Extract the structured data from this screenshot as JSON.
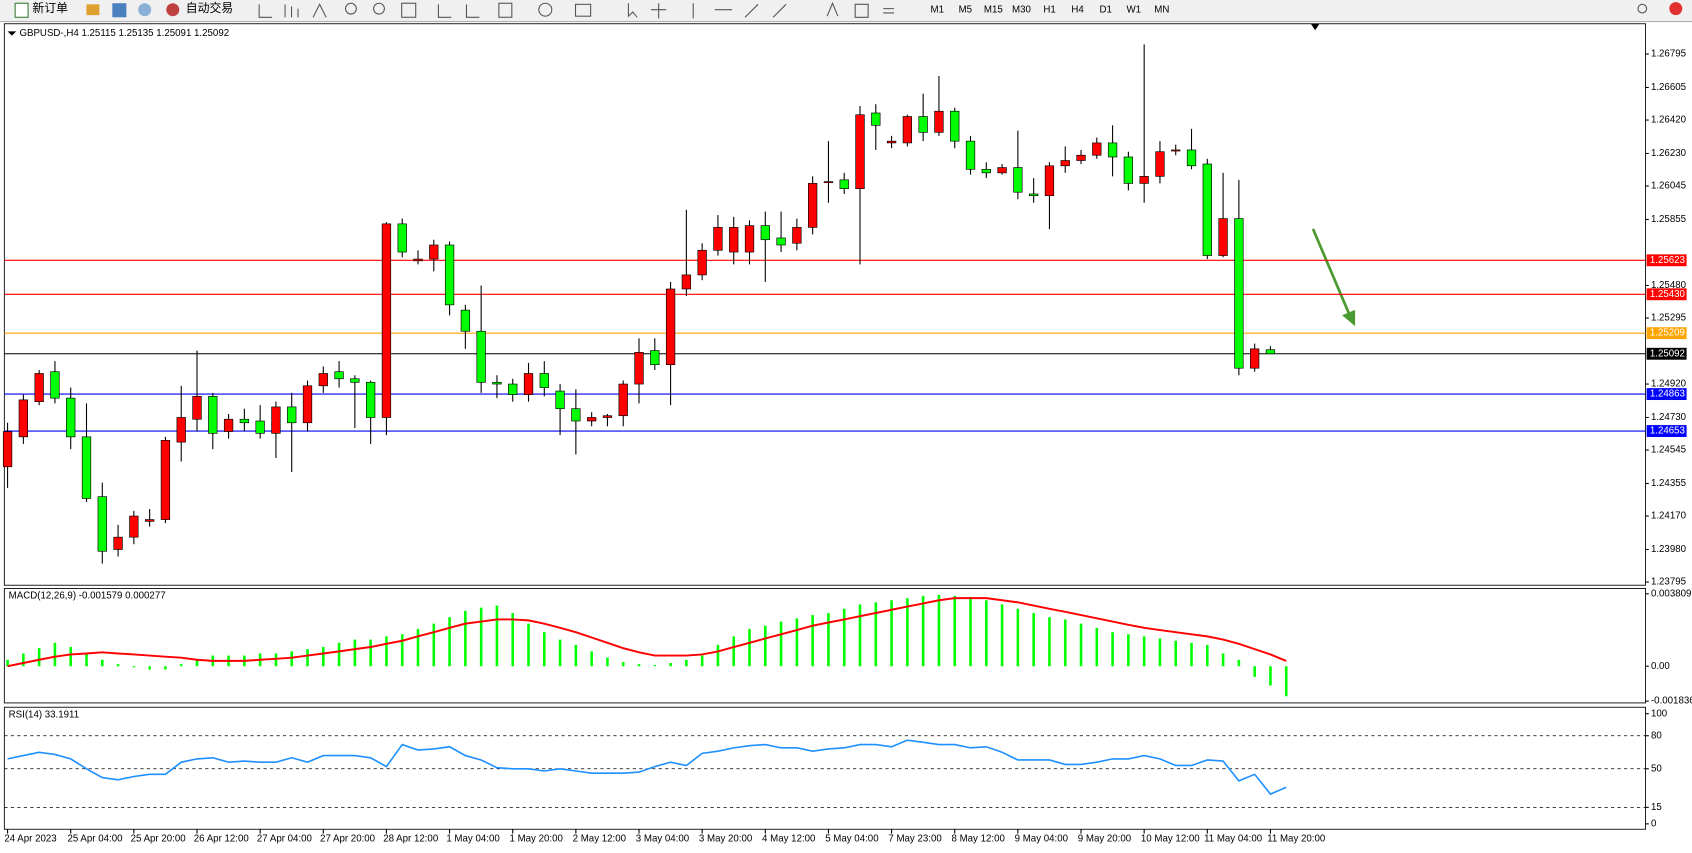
{
  "toolbar": {
    "new_order": "新订单",
    "auto_trading": "自动交易",
    "timeframes": [
      "M1",
      "M5",
      "M15",
      "M30",
      "H1",
      "H4",
      "D1",
      "W1",
      "MN"
    ]
  },
  "chart_data": [
    {
      "type": "candlestick",
      "title": "GBPUSD-,H4  1.25115 1.25135 1.25091 1.25092",
      "categories": [
        "24 Apr 2023",
        null,
        null,
        null,
        "25 Apr 04:00",
        null,
        null,
        null,
        "25 Apr 20:00",
        null,
        null,
        null,
        "26 Apr 12:00",
        null,
        null,
        null,
        "27 Apr 04:00",
        null,
        null,
        null,
        "27 Apr 20:00",
        null,
        null,
        null,
        "28 Apr 12:00",
        null,
        null,
        null,
        "1 May 04:00",
        null,
        null,
        null,
        "1 May 20:00",
        null,
        null,
        null,
        "2 May 12:00",
        null,
        null,
        null,
        "3 May 04:00",
        null,
        null,
        null,
        "3 May 20:00",
        null,
        null,
        null,
        "4 May 12:00",
        null,
        null,
        null,
        "5 May 04:00",
        null,
        null,
        null,
        "7 May 23:00",
        null,
        null,
        null,
        "8 May 12:00",
        null,
        null,
        null,
        "9 May 04:00",
        null,
        null,
        null,
        "9 May 20:00",
        null,
        null,
        null,
        "10 May 12:00",
        null,
        null,
        null,
        "11 May 04:00",
        null,
        null,
        null,
        "11 May 20:00",
        null
      ],
      "candles": [
        [
          1.2445,
          1.247,
          1.2433,
          1.2465
        ],
        [
          1.2462,
          1.2486,
          1.2458,
          1.2483
        ],
        [
          1.2482,
          1.25,
          1.248,
          1.2498
        ],
        [
          1.2499,
          1.2505,
          1.2481,
          1.2484
        ],
        [
          1.2484,
          1.249,
          1.2455,
          1.2462
        ],
        [
          1.2462,
          1.2481,
          1.2425,
          1.2427
        ],
        [
          1.2428,
          1.2436,
          1.239,
          1.2397
        ],
        [
          1.2398,
          1.2412,
          1.2394,
          1.2405
        ],
        [
          1.2405,
          1.242,
          1.2401,
          1.2417
        ],
        [
          1.2414,
          1.2421,
          1.2411,
          1.2415
        ],
        [
          1.2415,
          1.2462,
          1.2413,
          1.246
        ],
        [
          1.2459,
          1.2491,
          1.2448,
          1.2473
        ],
        [
          1.2472,
          1.2511,
          1.2465,
          1.2485
        ],
        [
          1.2485,
          1.2487,
          1.2455,
          1.2464
        ],
        [
          1.2465,
          1.2475,
          1.2461,
          1.2472
        ],
        [
          1.2472,
          1.2478,
          1.2465,
          1.247
        ],
        [
          1.2471,
          1.248,
          1.2461,
          1.2464
        ],
        [
          1.2464,
          1.2482,
          1.245,
          1.2479
        ],
        [
          1.2479,
          1.2487,
          1.2442,
          1.247
        ],
        [
          1.247,
          1.2494,
          1.2465,
          1.2491
        ],
        [
          1.2491,
          1.2502,
          1.2487,
          1.2498
        ],
        [
          1.2499,
          1.2505,
          1.249,
          1.2495
        ],
        [
          1.2495,
          1.2497,
          1.2467,
          1.2493
        ],
        [
          1.2493,
          1.2494,
          1.2458,
          1.2473
        ],
        [
          1.2473,
          1.2584,
          1.2463,
          1.2583
        ],
        [
          1.2583,
          1.2586,
          1.2564,
          1.2567
        ],
        [
          1.2562,
          1.2568,
          1.256,
          1.2563
        ],
        [
          1.2563,
          1.2574,
          1.2556,
          1.2571
        ],
        [
          1.2571,
          1.2573,
          1.2531,
          1.2537
        ],
        [
          1.2534,
          1.2537,
          1.2512,
          1.2522
        ],
        [
          1.2522,
          1.2548,
          1.2487,
          1.2493
        ],
        [
          1.2493,
          1.2497,
          1.2484,
          1.2492
        ],
        [
          1.2492,
          1.2495,
          1.2482,
          1.2486
        ],
        [
          1.2486,
          1.2504,
          1.2482,
          1.2498
        ],
        [
          1.2498,
          1.2505,
          1.2485,
          1.249
        ],
        [
          1.2488,
          1.2492,
          1.2463,
          1.2478
        ],
        [
          1.2478,
          1.2489,
          1.2452,
          1.2471
        ],
        [
          1.2471,
          1.2476,
          1.2468,
          1.2473
        ],
        [
          1.2473,
          1.2475,
          1.2468,
          1.2474
        ],
        [
          1.2474,
          1.2494,
          1.2468,
          1.2492
        ],
        [
          1.2492,
          1.2518,
          1.2481,
          1.251
        ],
        [
          1.2511,
          1.2518,
          1.25,
          1.2503
        ],
        [
          1.2503,
          1.255,
          1.248,
          1.2546
        ],
        [
          1.2546,
          1.2591,
          1.2542,
          1.2554
        ],
        [
          1.2554,
          1.2572,
          1.2551,
          1.2568
        ],
        [
          1.2568,
          1.2588,
          1.2565,
          1.2581
        ],
        [
          1.2567,
          1.2587,
          1.256,
          1.2581
        ],
        [
          1.2567,
          1.2585,
          1.256,
          1.2582
        ],
        [
          1.2582,
          1.259,
          1.255,
          1.2574
        ],
        [
          1.2575,
          1.259,
          1.2567,
          1.2571
        ],
        [
          1.2572,
          1.2586,
          1.2568,
          1.2581
        ],
        [
          1.2581,
          1.261,
          1.2577,
          1.2606
        ],
        [
          1.2607,
          1.263,
          1.2595,
          1.2607
        ],
        [
          1.2608,
          1.2612,
          1.26,
          1.2603
        ],
        [
          1.2603,
          1.265,
          1.256,
          1.2645
        ],
        [
          1.2646,
          1.2651,
          1.2625,
          1.2639
        ],
        [
          1.2629,
          1.2633,
          1.2626,
          1.263
        ],
        [
          1.2629,
          1.2645,
          1.2627,
          1.2644
        ],
        [
          1.2644,
          1.2657,
          1.263,
          1.2635
        ],
        [
          1.2635,
          1.2667,
          1.2633,
          1.2647
        ],
        [
          1.2647,
          1.2649,
          1.2626,
          1.263
        ],
        [
          1.263,
          1.2633,
          1.2611,
          1.2614
        ],
        [
          1.2614,
          1.2618,
          1.2609,
          1.2612
        ],
        [
          1.2612,
          1.2617,
          1.2611,
          1.2615
        ],
        [
          1.2615,
          1.2636,
          1.2597,
          1.2601
        ],
        [
          1.26,
          1.2609,
          1.2595,
          1.2599
        ],
        [
          1.2599,
          1.2618,
          1.258,
          1.2616
        ],
        [
          1.2616,
          1.2627,
          1.2612,
          1.2619
        ],
        [
          1.2619,
          1.2625,
          1.2617,
          1.2622
        ],
        [
          1.2622,
          1.2632,
          1.262,
          1.2629
        ],
        [
          1.2629,
          1.2639,
          1.261,
          1.2621
        ],
        [
          1.2621,
          1.2624,
          1.2602,
          1.2606
        ],
        [
          1.2606,
          1.2685,
          1.2595,
          1.261
        ],
        [
          1.261,
          1.263,
          1.2606,
          1.2624
        ],
        [
          1.2625,
          1.2628,
          1.2622,
          1.2625
        ],
        [
          1.2625,
          1.2637,
          1.2614,
          1.2616
        ],
        [
          1.2617,
          1.262,
          1.2563,
          1.2565
        ],
        [
          1.2565,
          1.2612,
          1.2564,
          1.2586
        ],
        [
          1.2586,
          1.2608,
          1.2497,
          1.2501
        ],
        [
          1.2501,
          1.2515,
          1.2499,
          1.2512
        ],
        [
          1.25115,
          1.25135,
          1.25091,
          1.25092
        ]
      ],
      "up_color": "#ff0000",
      "down_color": "#00ff00",
      "ylim": [
        1.23777,
        1.26967
      ],
      "yticks": [
        1.26795,
        1.26605,
        {
          "value": 1.2642,
          "label": "1.26420"
        },
        {
          "value": 1.2623,
          "label": "1.26230"
        },
        1.26045,
        1.25855,
        {
          "value": 1.2548,
          "label": "1.25480"
        },
        1.25295,
        {
          "value": 1.2492,
          "label": "1.24920"
        },
        {
          "value": 1.2473,
          "label": "1.24730"
        },
        1.24545,
        1.24355,
        {
          "value": 1.2417,
          "label": "1.24170"
        },
        {
          "value": 1.2398,
          "label": "1.23980"
        },
        1.23795
      ],
      "levels": [
        {
          "value": 1.25623,
          "color": "#ff0000"
        },
        {
          "value": 1.2543,
          "label": "1.25430",
          "color": "#ff0000"
        },
        {
          "value": 1.25209,
          "color": "#ffa500"
        },
        {
          "value": 1.25092,
          "color": "#000000"
        },
        {
          "value": 1.24863,
          "color": "#0000ff"
        },
        {
          "value": 1.24653,
          "color": "#0000ff"
        }
      ]
    },
    {
      "type": "macd",
      "title": "MACD(12,26,9) -0.001579 0.000277",
      "histogram": {
        "color": "#00ff00",
        "values": [
          0.00034,
          0.00067,
          0.00095,
          0.00123,
          0.00101,
          0.00067,
          0.00034,
          0.00011,
          -6e-05,
          -0.00017,
          -0.00017,
          0.00011,
          0.00034,
          0.00056,
          0.00056,
          0.00056,
          0.00067,
          0.00067,
          0.00078,
          0.0009,
          0.00101,
          0.00123,
          0.0014,
          0.0014,
          0.00157,
          0.00168,
          0.00196,
          0.00224,
          0.00258,
          0.00291,
          0.00308,
          0.00319,
          0.0028,
          0.00224,
          0.00179,
          0.0014,
          0.00112,
          0.00078,
          0.00045,
          0.00022,
          0.00011,
          6e-05,
          0.00017,
          0.00034,
          0.00056,
          0.00112,
          0.00157,
          0.00196,
          0.00213,
          0.00235,
          0.00252,
          0.00269,
          0.0028,
          0.00302,
          0.00325,
          0.00336,
          0.00347,
          0.00358,
          0.0037,
          0.00375,
          0.0037,
          0.00364,
          0.00347,
          0.00325,
          0.00302,
          0.0028,
          0.00258,
          0.00246,
          0.00224,
          0.00202,
          0.00179,
          0.00168,
          0.00157,
          0.00146,
          0.00134,
          0.00123,
          0.00112,
          0.00067,
          0.00034,
          -0.00056,
          -0.00101,
          -0.001579
        ]
      },
      "signal": {
        "color": "#ff0000",
        "values": [
          0,
          0.00017,
          0.00034,
          0.0005,
          0.00062,
          0.00067,
          0.00073,
          0.00067,
          0.00062,
          0.00056,
          0.0005,
          0.00045,
          0.00034,
          0.00028,
          0.00028,
          0.00028,
          0.00034,
          0.00039,
          0.00045,
          0.00056,
          0.00067,
          0.00078,
          0.0009,
          0.00101,
          0.00118,
          0.00134,
          0.00157,
          0.00179,
          0.00202,
          0.00224,
          0.00235,
          0.00246,
          0.00246,
          0.00241,
          0.00224,
          0.00202,
          0.00179,
          0.00151,
          0.00123,
          0.00095,
          0.00073,
          0.00056,
          0.00056,
          0.00056,
          0.00062,
          0.00078,
          0.00101,
          0.00123,
          0.00146,
          0.00168,
          0.0019,
          0.00213,
          0.0023,
          0.00246,
          0.00263,
          0.0028,
          0.00297,
          0.00314,
          0.0033,
          0.00347,
          0.00358,
          0.00358,
          0.00358,
          0.00347,
          0.00336,
          0.00319,
          0.00302,
          0.00286,
          0.00269,
          0.00252,
          0.00235,
          0.00218,
          0.00202,
          0.0019,
          0.00179,
          0.00168,
          0.00157,
          0.0014,
          0.00118,
          0.0009,
          0.00062,
          0.000277
        ]
      },
      "ylim": [
        -0.00193,
        0.00409
      ],
      "yticks": [
        0.003809,
        {
          "value": 0,
          "label": "0.00"
        },
        -0.001836
      ]
    },
    {
      "type": "line",
      "title": "RSI(14) 33.1911",
      "color": "#1e90ff",
      "values": [
        59,
        62,
        65,
        63,
        59,
        50,
        42,
        40,
        43,
        45,
        45,
        56,
        59,
        60,
        56,
        57,
        56,
        56,
        60,
        56,
        62,
        62,
        62,
        60,
        52,
        72,
        67,
        68,
        70,
        62,
        58,
        51,
        50,
        50,
        48,
        50,
        48,
        46,
        46,
        46,
        47,
        52,
        56,
        53,
        64,
        66,
        69,
        71,
        72,
        69,
        69,
        66,
        68,
        69,
        72,
        72,
        70,
        76,
        74,
        72,
        72,
        69,
        70,
        65,
        58,
        58,
        58,
        54,
        54,
        56,
        59,
        59,
        62,
        59,
        53,
        53,
        58,
        57,
        39,
        45,
        27,
        33.1911
      ],
      "ylim": [
        -4.9,
        105.9
      ],
      "yticks": [
        100,
        80,
        50,
        15,
        0
      ],
      "levels": [
        80,
        50,
        15
      ]
    }
  ]
}
